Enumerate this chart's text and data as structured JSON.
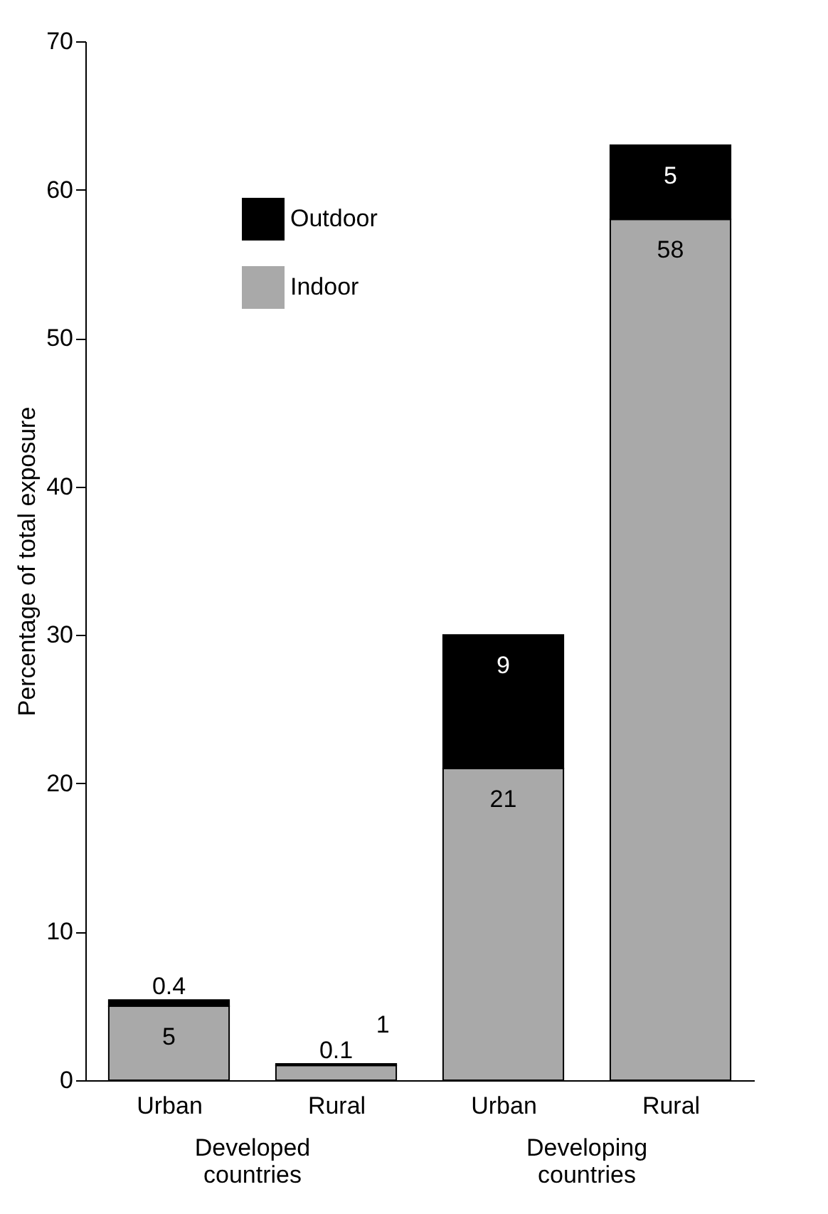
{
  "chart_data": {
    "type": "bar",
    "stacked": true,
    "ylabel": "Percentage of total exposure",
    "categories": [
      "Urban",
      "Rural",
      "Urban",
      "Rural"
    ],
    "series": [
      {
        "name": "Indoor",
        "color": "#a9a9a9",
        "values": [
          5,
          1,
          21,
          58
        ]
      },
      {
        "name": "Outdoor",
        "color": "#000000",
        "values": [
          0.4,
          0.1,
          9,
          5
        ]
      }
    ],
    "ylim": [
      0,
      70
    ],
    "yticks": [
      0,
      10,
      20,
      30,
      40,
      50,
      60,
      70
    ],
    "data_labels": true,
    "legend": "top left",
    "grid": false,
    "annotations": [
      "Developed countries",
      "Developing countries"
    ]
  }
}
